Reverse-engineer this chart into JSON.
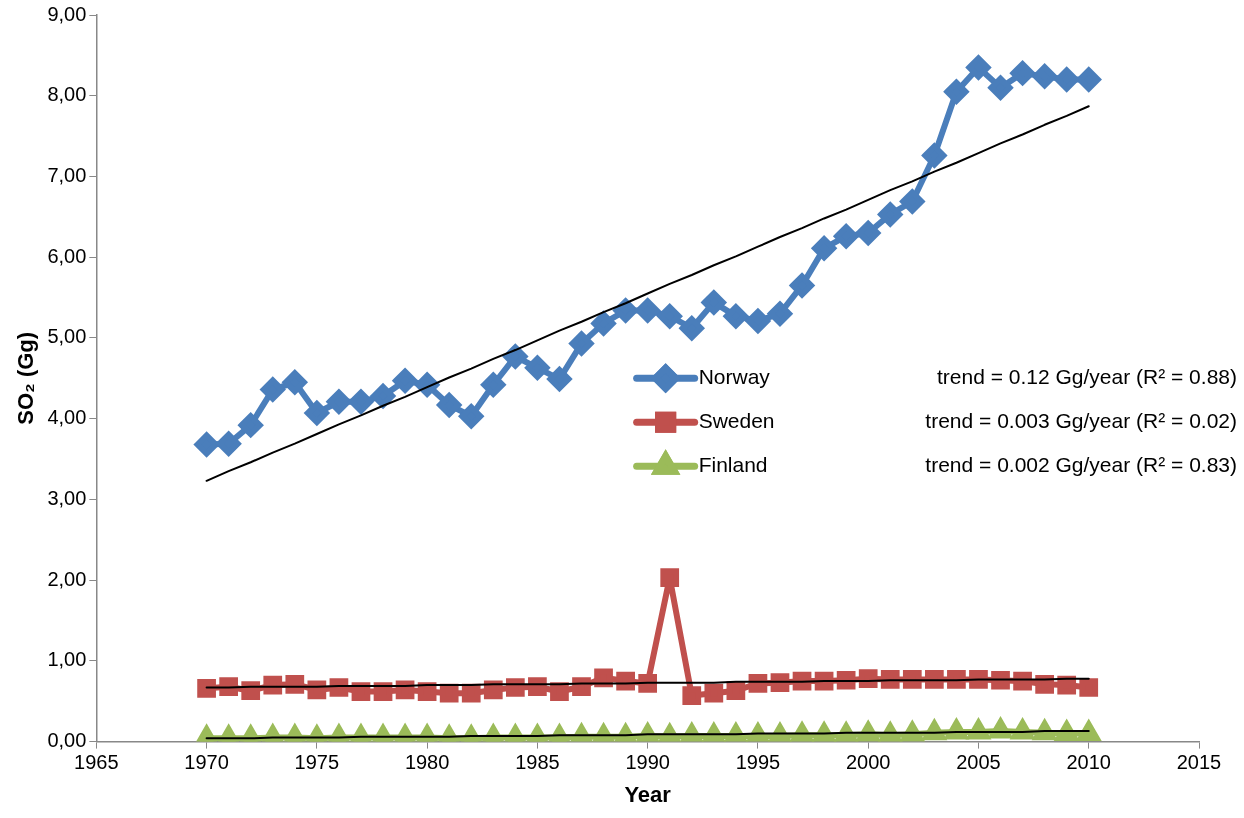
{
  "chart_data": {
    "type": "line",
    "xlabel": "Year",
    "ylabel": "SO₂ (Gg)",
    "x": [
      1970,
      1971,
      1972,
      1973,
      1974,
      1975,
      1976,
      1977,
      1978,
      1979,
      1980,
      1981,
      1982,
      1983,
      1984,
      1985,
      1986,
      1987,
      1988,
      1989,
      1990,
      1991,
      1992,
      1993,
      1994,
      1995,
      1996,
      1997,
      1998,
      1999,
      2000,
      2001,
      2002,
      2003,
      2004,
      2005,
      2006,
      2007,
      2008,
      2009,
      2010
    ],
    "series": [
      {
        "name": "Norway",
        "color": "#4a7ebb",
        "marker": "diamond",
        "values": [
          3.68,
          3.69,
          3.92,
          4.36,
          4.45,
          4.07,
          4.21,
          4.21,
          4.28,
          4.47,
          4.42,
          4.17,
          4.03,
          4.42,
          4.77,
          4.63,
          4.49,
          4.93,
          5.18,
          5.34,
          5.34,
          5.27,
          5.12,
          5.44,
          5.27,
          5.21,
          5.3,
          5.65,
          6.11,
          6.26,
          6.3,
          6.53,
          6.69,
          7.26,
          8.05,
          8.35,
          8.1,
          8.28,
          8.24,
          8.2,
          8.2
        ]
      },
      {
        "name": "Sweden",
        "color": "#c0504d",
        "marker": "square",
        "values": [
          0.66,
          0.68,
          0.63,
          0.7,
          0.71,
          0.64,
          0.67,
          0.62,
          0.62,
          0.64,
          0.62,
          0.6,
          0.6,
          0.64,
          0.67,
          0.68,
          0.62,
          0.68,
          0.79,
          0.75,
          0.72,
          2.03,
          0.57,
          0.6,
          0.63,
          0.72,
          0.73,
          0.75,
          0.75,
          0.76,
          0.78,
          0.77,
          0.77,
          0.77,
          0.77,
          0.77,
          0.76,
          0.75,
          0.71,
          0.7,
          0.67
        ]
      },
      {
        "name": "Finland",
        "color": "#9bbb59",
        "marker": "triangle",
        "values": [
          0.04,
          0.04,
          0.04,
          0.05,
          0.05,
          0.04,
          0.05,
          0.05,
          0.05,
          0.05,
          0.05,
          0.04,
          0.04,
          0.05,
          0.05,
          0.05,
          0.05,
          0.06,
          0.06,
          0.06,
          0.07,
          0.06,
          0.07,
          0.07,
          0.07,
          0.07,
          0.07,
          0.08,
          0.08,
          0.08,
          0.09,
          0.08,
          0.09,
          0.11,
          0.12,
          0.12,
          0.13,
          0.12,
          0.11,
          0.1,
          0.1
        ]
      },
      {
        "type": "line",
        "color": "#000000",
        "marker": "none",
        "values": [
          3.23,
          3.35,
          3.46,
          3.58,
          3.69,
          3.81,
          3.93,
          4.04,
          4.16,
          4.27,
          4.39,
          4.51,
          4.62,
          4.74,
          4.85,
          4.97,
          5.09,
          5.2,
          5.32,
          5.43,
          5.55,
          5.67,
          5.78,
          5.9,
          6.01,
          6.13,
          6.25,
          6.36,
          6.48,
          6.59,
          6.71,
          6.83,
          6.94,
          7.06,
          7.17,
          7.29,
          7.41,
          7.52,
          7.64,
          7.75,
          7.87
        ]
      },
      {
        "type": "line",
        "color": "#000000",
        "marker": "none",
        "values": [
          0.67,
          0.67,
          0.68,
          0.68,
          0.68,
          0.68,
          0.69,
          0.69,
          0.69,
          0.69,
          0.7,
          0.7,
          0.7,
          0.71,
          0.71,
          0.71,
          0.71,
          0.72,
          0.72,
          0.72,
          0.73,
          0.73,
          0.73,
          0.73,
          0.74,
          0.74,
          0.74,
          0.74,
          0.75,
          0.75,
          0.75,
          0.76,
          0.76,
          0.76,
          0.76,
          0.77,
          0.77,
          0.77,
          0.77,
          0.78,
          0.78
        ]
      },
      {
        "type": "line",
        "color": "#000000",
        "marker": "none",
        "values": [
          0.04,
          0.04,
          0.04,
          0.05,
          0.05,
          0.05,
          0.05,
          0.06,
          0.06,
          0.06,
          0.06,
          0.06,
          0.07,
          0.07,
          0.07,
          0.07,
          0.08,
          0.08,
          0.08,
          0.08,
          0.09,
          0.09,
          0.09,
          0.09,
          0.09,
          0.1,
          0.1,
          0.1,
          0.1,
          0.11,
          0.11,
          0.11,
          0.11,
          0.11,
          0.12,
          0.12,
          0.12,
          0.12,
          0.13,
          0.13,
          0.13
        ]
      }
    ],
    "xlim": [
      1965,
      2015
    ],
    "xticks": [
      1965,
      1970,
      1975,
      1980,
      1985,
      1990,
      1995,
      2000,
      2005,
      2010,
      2015
    ],
    "ylim": [
      0,
      9
    ],
    "yticks": [
      {
        "value": 0,
        "label": "0,00"
      },
      {
        "value": 1,
        "label": "1,00"
      },
      {
        "value": 2,
        "label": "2,00"
      },
      {
        "value": 3,
        "label": "3,00"
      },
      {
        "value": 4,
        "label": "4,00"
      },
      {
        "value": 5,
        "label": "5,00"
      },
      {
        "value": 6,
        "label": "6,00"
      },
      {
        "value": 7,
        "label": "7,00"
      },
      {
        "value": 8,
        "label": "8,00"
      },
      {
        "value": 9,
        "label": "9,00"
      }
    ],
    "grid": false,
    "legend": "right",
    "annotations": [
      "trend = 0.12 Gg/year (R² = 0.88)",
      "trend = 0.003 Gg/year (R² = 0.02)",
      "trend = 0.002 Gg/year (R² = 0.83)"
    ]
  }
}
